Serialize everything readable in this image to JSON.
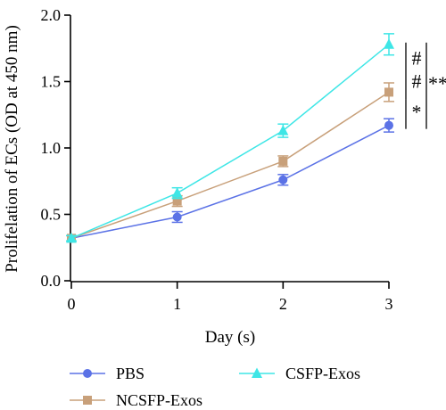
{
  "chart_data": {
    "type": "line",
    "xlabel": "Day (s)",
    "ylabel": "Prolifelation of ECs (OD at 450 nm)",
    "xlim": [
      0,
      3
    ],
    "ylim": [
      0,
      2
    ],
    "x": [
      0,
      1,
      2,
      3
    ],
    "x_tick_labels": [
      "0",
      "1",
      "2",
      "3"
    ],
    "y_ticks": [
      0,
      0.5,
      1,
      1.5,
      2
    ],
    "y_tick_labels": [
      "0.0",
      "0.5",
      "1.0",
      "1.5",
      "2.0"
    ],
    "grid": false,
    "legend_position": "bottom",
    "series": [
      {
        "name": "PBS",
        "marker": "circle",
        "color": "#5b72e6",
        "values": [
          0.32,
          0.48,
          0.76,
          1.17
        ],
        "errors": [
          0.02,
          0.04,
          0.04,
          0.05
        ]
      },
      {
        "name": "NCSFP-Exos",
        "marker": "square",
        "color": "#c8a07a",
        "values": [
          0.32,
          0.6,
          0.9,
          1.42
        ],
        "errors": [
          0.02,
          0.04,
          0.04,
          0.07
        ]
      },
      {
        "name": "CSFP-Exos",
        "marker": "triangle",
        "color": "#3ee6e6",
        "values": [
          0.32,
          0.66,
          1.13,
          1.78
        ],
        "errors": [
          0.02,
          0.04,
          0.05,
          0.08
        ]
      }
    ],
    "annotations": [
      "#",
      "#",
      "*",
      "**"
    ]
  }
}
